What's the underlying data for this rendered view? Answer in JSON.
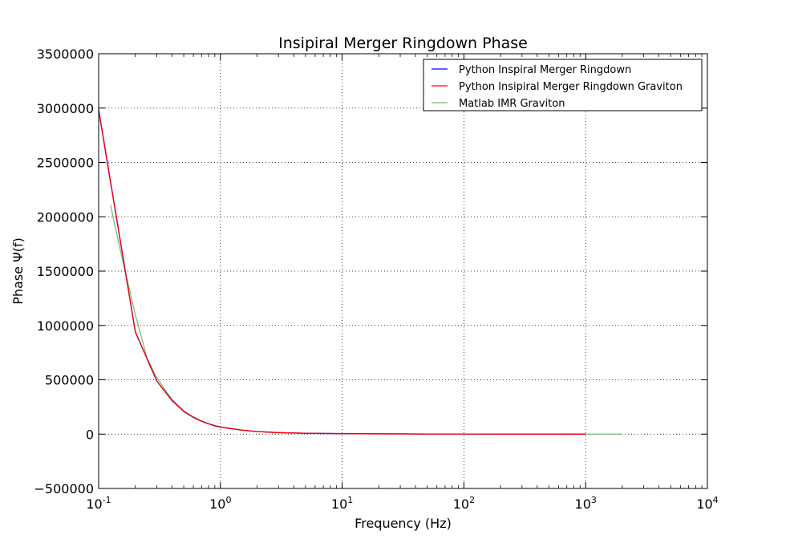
{
  "chart_data": {
    "type": "line",
    "title": "Insipiral Merger Ringdown Phase",
    "xlabel": "Frequency (Hz)",
    "ylabel": "Phase Ψ(f)",
    "xscale": "log",
    "xlim": [
      0.1,
      10000
    ],
    "ylim": [
      -500000,
      3500000
    ],
    "grid": true,
    "legend_position": "top-right",
    "x_ticks": [
      {
        "base": "10",
        "exp": "-1",
        "value": 0.1
      },
      {
        "base": "10",
        "exp": "0",
        "value": 1
      },
      {
        "base": "10",
        "exp": "1",
        "value": 10
      },
      {
        "base": "10",
        "exp": "2",
        "value": 100
      },
      {
        "base": "10",
        "exp": "3",
        "value": 1000
      },
      {
        "base": "10",
        "exp": "4",
        "value": 10000
      }
    ],
    "y_ticks": [
      {
        "label": "−500000",
        "value": -500000
      },
      {
        "label": "0",
        "value": 0
      },
      {
        "label": "500000",
        "value": 500000
      },
      {
        "label": "1000000",
        "value": 1000000
      },
      {
        "label": "1500000",
        "value": 1500000
      },
      {
        "label": "2000000",
        "value": 2000000
      },
      {
        "label": "2500000",
        "value": 2500000
      },
      {
        "label": "3000000",
        "value": 3000000
      },
      {
        "label": "3500000",
        "value": 3500000
      }
    ],
    "series": [
      {
        "name": "Python Inspiral Merger Ringdown",
        "color": "#0000ff",
        "line_width": 1.3,
        "x": [
          0.1,
          0.2,
          0.3,
          0.4,
          0.5,
          0.6,
          0.7,
          0.8,
          0.9,
          1,
          1.5,
          2,
          3,
          4,
          5,
          7,
          10,
          20,
          50,
          100,
          200,
          500,
          1000
        ],
        "y": [
          2980000,
          940000,
          490000,
          310000,
          210000,
          155000,
          120000,
          95000,
          77000,
          65000,
          37000,
          24000,
          14000,
          10000,
          8000,
          6000,
          4500,
          2500,
          1200,
          800,
          500,
          300,
          200
        ]
      },
      {
        "name": "Python Insipiral Merger Ringdown Graviton",
        "color": "#ff0000",
        "line_width": 1.3,
        "x": [
          0.1,
          0.2,
          0.3,
          0.4,
          0.5,
          0.6,
          0.7,
          0.8,
          0.9,
          1,
          1.5,
          2,
          3,
          4,
          5,
          7,
          10,
          20,
          50,
          100,
          200,
          500,
          1000
        ],
        "y": [
          2990000,
          945000,
          488000,
          308000,
          208000,
          153000,
          118000,
          94000,
          76000,
          64000,
          36000,
          23500,
          13500,
          9800,
          7800,
          5800,
          4300,
          2400,
          1150,
          780,
          480,
          290,
          190
        ]
      },
      {
        "name": "Matlab IMR Graviton",
        "color": "#6cbf6c",
        "line_width": 1.2,
        "x": [
          0.125,
          0.15,
          0.2,
          0.25,
          0.3,
          0.4,
          0.5,
          0.6,
          0.7,
          0.8,
          1,
          1.5,
          2,
          3,
          5,
          10,
          20,
          50,
          100,
          200,
          500,
          1000,
          2000
        ],
        "y": [
          2110000,
          1700000,
          1100000,
          700000,
          520000,
          320000,
          215000,
          158000,
          121000,
          96000,
          66000,
          37000,
          24000,
          14000,
          8000,
          4500,
          2500,
          1200,
          800,
          500,
          300,
          200,
          100
        ]
      }
    ]
  }
}
